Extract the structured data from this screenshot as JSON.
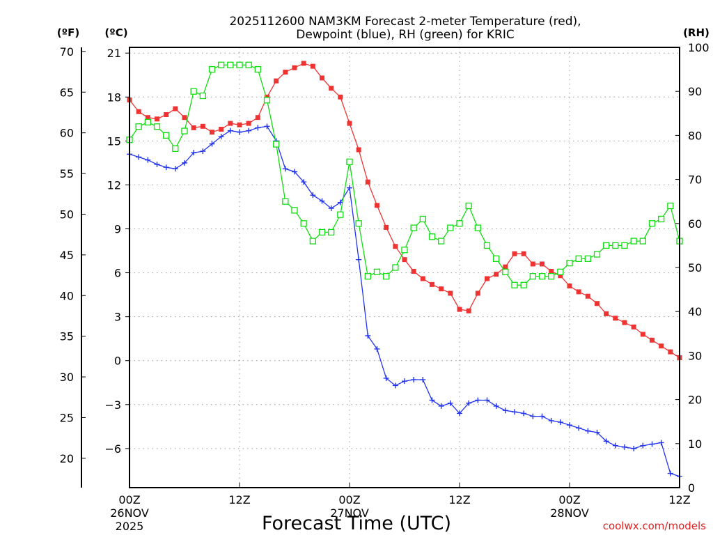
{
  "chart_data": {
    "type": "line",
    "title_line1": "2025112600 NAM3KM Forecast 2-meter Temperature (red),",
    "title_line2": "Dewpoint (blue), RH (green) for KRIC",
    "xlabel": "Forecast Time (UTC)",
    "credit": "coolwx.com/models",
    "unit_f": "(ºF)",
    "unit_c": "(ºC)",
    "unit_rh": "(RH)",
    "x_range_hours": [
      0,
      60
    ],
    "ylim_c": [
      -8.67,
      21.39
    ],
    "ylim_rh": [
      0,
      100
    ],
    "x_ticks": [
      {
        "hour": 0,
        "label": "00Z",
        "date": "26NOV",
        "year": "2025"
      },
      {
        "hour": 12,
        "label": "12Z",
        "date": "",
        "year": ""
      },
      {
        "hour": 24,
        "label": "00Z",
        "date": "27NOV",
        "year": ""
      },
      {
        "hour": 36,
        "label": "12Z",
        "date": "",
        "year": ""
      },
      {
        "hour": 48,
        "label": "00Z",
        "date": "28NOV",
        "year": ""
      },
      {
        "hour": 60,
        "label": "12Z",
        "date": "",
        "year": ""
      }
    ],
    "c_ticks": [
      "21",
      "18",
      "15",
      "12",
      "9",
      "6",
      "3",
      "0",
      "−3",
      "−6"
    ],
    "c_tick_values": [
      21,
      18,
      15,
      12,
      9,
      6,
      3,
      0,
      -3,
      -6
    ],
    "f_ticks": [
      "70",
      "65",
      "60",
      "55",
      "50",
      "45",
      "40",
      "35",
      "30",
      "25",
      "20"
    ],
    "f_tick_values": [
      70,
      65,
      60,
      55,
      50,
      45,
      40,
      35,
      30,
      25,
      20
    ],
    "rh_ticks": [
      "100",
      "90",
      "80",
      "70",
      "60",
      "50",
      "40",
      "30",
      "20",
      "10",
      "0"
    ],
    "rh_tick_values": [
      100,
      90,
      80,
      70,
      60,
      50,
      40,
      30,
      20,
      10,
      0
    ],
    "series": [
      {
        "name": "2-meter Temperature",
        "axis": "c",
        "color": "#ee3333",
        "marker": "filled-square",
        "hours": [
          0,
          1,
          2,
          3,
          4,
          5,
          6,
          7,
          8,
          9,
          10,
          11,
          12,
          13,
          14,
          15,
          16,
          17,
          18,
          19,
          20,
          21,
          22,
          23,
          24,
          25,
          26,
          27,
          28,
          29,
          30,
          31,
          32,
          33,
          34,
          35,
          36,
          37,
          38,
          39,
          40,
          41,
          42,
          43,
          44,
          45,
          46,
          47,
          48,
          49,
          50,
          51,
          52,
          53,
          54,
          55,
          56,
          57,
          58,
          59,
          60
        ],
        "values": [
          17.8,
          17.0,
          16.6,
          16.5,
          16.8,
          17.2,
          16.6,
          15.9,
          16.0,
          15.6,
          15.8,
          16.2,
          16.1,
          16.2,
          16.6,
          18.0,
          19.1,
          19.7,
          20.0,
          20.3,
          20.1,
          19.3,
          18.6,
          18.0,
          16.2,
          14.4,
          12.2,
          10.6,
          9.1,
          7.8,
          6.9,
          6.1,
          5.6,
          5.2,
          4.9,
          4.6,
          3.5,
          3.4,
          4.6,
          5.6,
          5.9,
          6.4,
          7.3,
          7.3,
          6.6,
          6.6,
          6.1,
          5.8,
          5.1,
          4.7,
          4.4,
          3.9,
          3.2,
          2.9,
          2.6,
          2.3,
          1.8,
          1.4,
          1.0,
          0.6,
          0.2
        ]
      },
      {
        "name": "Dewpoint",
        "axis": "c",
        "color": "#2233ee",
        "marker": "plus",
        "hours": [
          0,
          1,
          2,
          3,
          4,
          5,
          6,
          7,
          8,
          9,
          10,
          11,
          12,
          13,
          14,
          15,
          16,
          17,
          18,
          19,
          20,
          21,
          22,
          23,
          24,
          25,
          26,
          27,
          28,
          29,
          30,
          31,
          32,
          33,
          34,
          35,
          36,
          37,
          38,
          39,
          40,
          41,
          42,
          43,
          44,
          45,
          46,
          47,
          48,
          49,
          50,
          51,
          52,
          53,
          54,
          55,
          56,
          57,
          58,
          59,
          60
        ],
        "values": [
          14.1,
          13.9,
          13.7,
          13.4,
          13.2,
          13.1,
          13.5,
          14.2,
          14.3,
          14.8,
          15.3,
          15.7,
          15.6,
          15.7,
          15.9,
          16.0,
          15.0,
          13.1,
          12.9,
          12.2,
          11.3,
          10.9,
          10.4,
          10.8,
          11.8,
          6.9,
          1.7,
          0.8,
          -1.2,
          -1.7,
          -1.4,
          -1.3,
          -1.3,
          -2.7,
          -3.1,
          -2.9,
          -3.6,
          -2.9,
          -2.7,
          -2.7,
          -3.1,
          -3.4,
          -3.5,
          -3.6,
          -3.8,
          -3.8,
          -4.1,
          -4.2,
          -4.4,
          -4.6,
          -4.8,
          -4.9,
          -5.5,
          -5.8,
          -5.9,
          -6.0,
          -5.8,
          -5.7,
          -5.6,
          -7.7,
          -7.9
        ]
      },
      {
        "name": "RH",
        "axis": "rh",
        "color": "#11dd11",
        "marker": "open-square",
        "hours": [
          0,
          1,
          2,
          3,
          4,
          5,
          6,
          7,
          8,
          9,
          10,
          11,
          12,
          13,
          14,
          15,
          16,
          17,
          18,
          19,
          20,
          21,
          22,
          23,
          24,
          25,
          26,
          27,
          28,
          29,
          30,
          31,
          32,
          33,
          34,
          35,
          36,
          37,
          38,
          39,
          40,
          41,
          42,
          43,
          44,
          45,
          46,
          47,
          48,
          49,
          50,
          51,
          52,
          53,
          54,
          55,
          56,
          57,
          58,
          59,
          60
        ],
        "values": [
          79,
          82,
          83,
          82,
          80,
          77,
          81,
          90,
          89,
          95,
          96,
          96,
          96,
          96,
          95,
          88,
          78,
          65,
          63,
          60,
          56,
          58,
          58,
          62,
          74,
          60,
          48,
          49,
          48,
          50,
          54,
          59,
          61,
          57,
          56,
          59,
          60,
          64,
          59,
          55,
          52,
          49,
          46,
          46,
          48,
          48,
          48,
          49,
          51,
          52,
          52,
          53,
          55,
          55,
          55,
          56,
          56,
          60,
          61,
          64,
          56
        ]
      }
    ]
  }
}
